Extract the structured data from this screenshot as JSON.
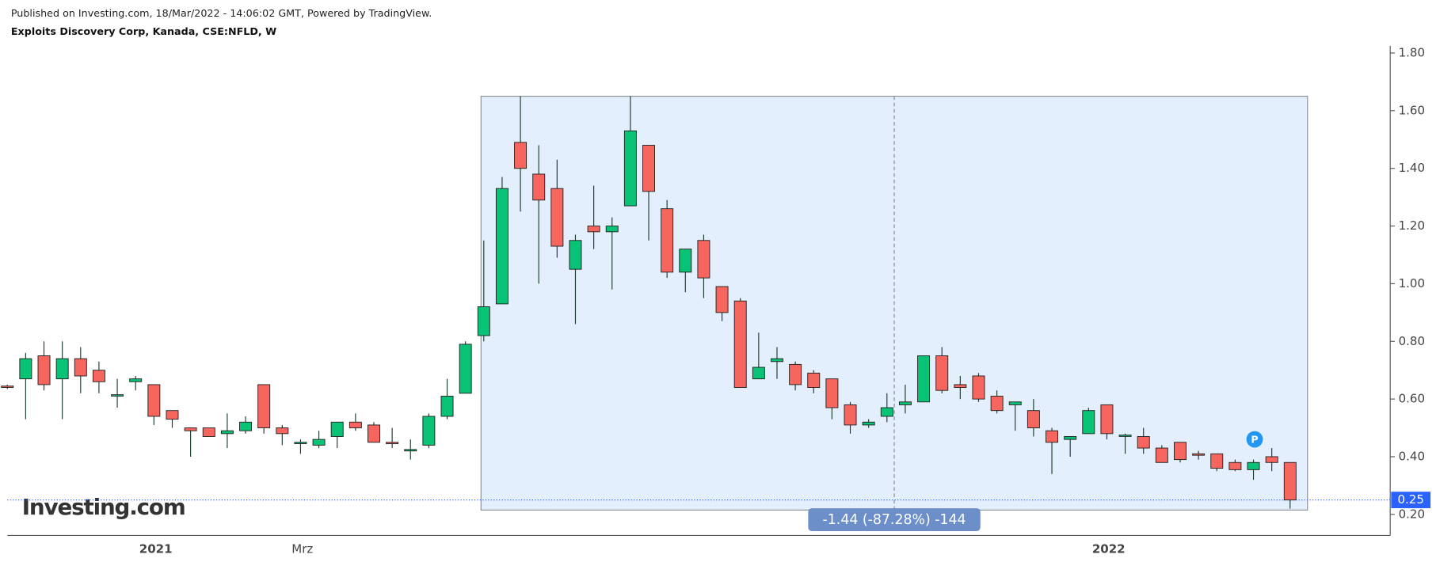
{
  "header": {
    "published": "Published on Investing.com, 18/Mar/2022 - 14:06:02 GMT, Powered by TradingView.",
    "symbol": "Exploits Discovery Corp, Kanada, CSE:NFLD, W"
  },
  "logo": "Investing.com",
  "chart_data": {
    "type": "candlestick",
    "categories": [
      null,
      null,
      null,
      null,
      null,
      null,
      null,
      null,
      "2021",
      null,
      null,
      null,
      null,
      null,
      null,
      null,
      "Mrz",
      null,
      null,
      null,
      null,
      null,
      null,
      null,
      null,
      null,
      null,
      null,
      null,
      null,
      null,
      null,
      null,
      null,
      null,
      null,
      null,
      null,
      null,
      null,
      null,
      null,
      null,
      null,
      null,
      null,
      null,
      null,
      null,
      null,
      null,
      null,
      null,
      null,
      null,
      null,
      null,
      null,
      null,
      null,
      "2022",
      null,
      null,
      null,
      null,
      null,
      null,
      null,
      null,
      null,
      null
    ],
    "open": [
      0.645,
      0.67,
      0.75,
      0.67,
      0.74,
      0.7,
      0.615,
      0.66,
      0.65,
      0.56,
      0.5,
      0.5,
      0.48,
      0.49,
      0.65,
      0.5,
      0.45,
      0.44,
      0.47,
      0.52,
      0.51,
      0.45,
      0.42,
      0.44,
      0.54,
      0.62,
      0.82,
      0.93,
      1.49,
      1.38,
      1.33,
      1.05,
      1.2,
      1.18,
      1.27,
      1.48,
      1.26,
      1.04,
      1.15,
      0.99,
      0.94,
      0.67,
      0.73,
      0.72,
      0.69,
      0.67,
      0.58,
      0.51,
      0.54,
      0.58,
      0.59,
      0.75,
      0.65,
      0.68,
      0.61,
      0.58,
      0.56,
      0.49,
      0.46,
      0.48,
      0.58,
      0.475,
      0.47,
      0.43,
      0.45,
      0.41,
      0.41,
      0.38,
      0.355,
      0.4,
      0.38
    ],
    "high": [
      0.65,
      0.76,
      0.8,
      0.8,
      0.78,
      0.73,
      0.67,
      0.68,
      0.65,
      0.56,
      0.5,
      0.5,
      0.55,
      0.54,
      0.65,
      0.51,
      0.46,
      0.49,
      0.52,
      0.55,
      0.52,
      0.5,
      0.46,
      0.55,
      0.67,
      0.8,
      1.15,
      1.37,
      1.65,
      1.48,
      1.43,
      1.17,
      1.34,
      1.23,
      1.65,
      1.48,
      1.29,
      1.12,
      1.17,
      0.99,
      0.95,
      0.83,
      0.78,
      0.73,
      0.7,
      0.67,
      0.59,
      0.53,
      0.62,
      0.65,
      0.75,
      0.78,
      0.68,
      0.69,
      0.63,
      0.59,
      0.6,
      0.5,
      0.47,
      0.57,
      0.58,
      0.48,
      0.5,
      0.44,
      0.45,
      0.42,
      0.41,
      0.39,
      0.39,
      0.43,
      0.38
    ],
    "low": [
      0.635,
      0.53,
      0.63,
      0.53,
      0.62,
      0.62,
      0.57,
      0.63,
      0.51,
      0.5,
      0.4,
      0.47,
      0.43,
      0.48,
      0.48,
      0.44,
      0.41,
      0.43,
      0.43,
      0.49,
      0.45,
      0.43,
      0.39,
      0.43,
      0.53,
      0.62,
      0.8,
      0.93,
      1.25,
      1.0,
      1.09,
      0.86,
      1.12,
      0.98,
      1.27,
      1.15,
      1.02,
      0.97,
      0.95,
      0.87,
      0.64,
      0.67,
      0.67,
      0.63,
      0.62,
      0.53,
      0.48,
      0.5,
      0.52,
      0.55,
      0.59,
      0.62,
      0.6,
      0.59,
      0.55,
      0.49,
      0.47,
      0.34,
      0.4,
      0.48,
      0.46,
      0.41,
      0.41,
      0.38,
      0.38,
      0.39,
      0.35,
      0.35,
      0.32,
      0.35,
      0.22
    ],
    "close": [
      0.64,
      0.74,
      0.65,
      0.74,
      0.68,
      0.66,
      0.615,
      0.67,
      0.54,
      0.53,
      0.49,
      0.47,
      0.49,
      0.52,
      0.5,
      0.48,
      0.45,
      0.46,
      0.52,
      0.5,
      0.45,
      0.445,
      0.425,
      0.54,
      0.61,
      0.79,
      0.92,
      1.33,
      1.4,
      1.29,
      1.13,
      1.15,
      1.18,
      1.2,
      1.53,
      1.32,
      1.04,
      1.12,
      1.02,
      0.9,
      0.64,
      0.71,
      0.74,
      0.65,
      0.64,
      0.57,
      0.51,
      0.52,
      0.57,
      0.59,
      0.75,
      0.63,
      0.64,
      0.6,
      0.56,
      0.59,
      0.5,
      0.45,
      0.47,
      0.56,
      0.48,
      0.475,
      0.43,
      0.38,
      0.39,
      0.405,
      0.36,
      0.355,
      0.38,
      0.38,
      0.25
    ],
    "up_color": "#08c275",
    "down_color": "#f7665e",
    "ylim": [
      0.127,
      1.825
    ],
    "yticks": [
      {
        "value": 0.2,
        "label": "0.20"
      },
      {
        "value": 0.4,
        "label": "0.40"
      },
      {
        "value": 0.6,
        "label": "0.60"
      },
      {
        "value": 0.8,
        "label": "0.80"
      },
      {
        "value": 1.0,
        "label": "1.00"
      },
      {
        "value": 1.2,
        "label": "1.20"
      },
      {
        "value": 1.4,
        "label": "1.40"
      },
      {
        "value": 1.6,
        "label": "1.60"
      },
      {
        "value": 1.8,
        "label": "1.80"
      }
    ],
    "last_price": {
      "value": 0.25,
      "label": "0.25"
    },
    "measure": {
      "high": 1.65,
      "low": 0.215,
      "label": "-1.44 (-87.28%) -144"
    },
    "badge": "P"
  }
}
